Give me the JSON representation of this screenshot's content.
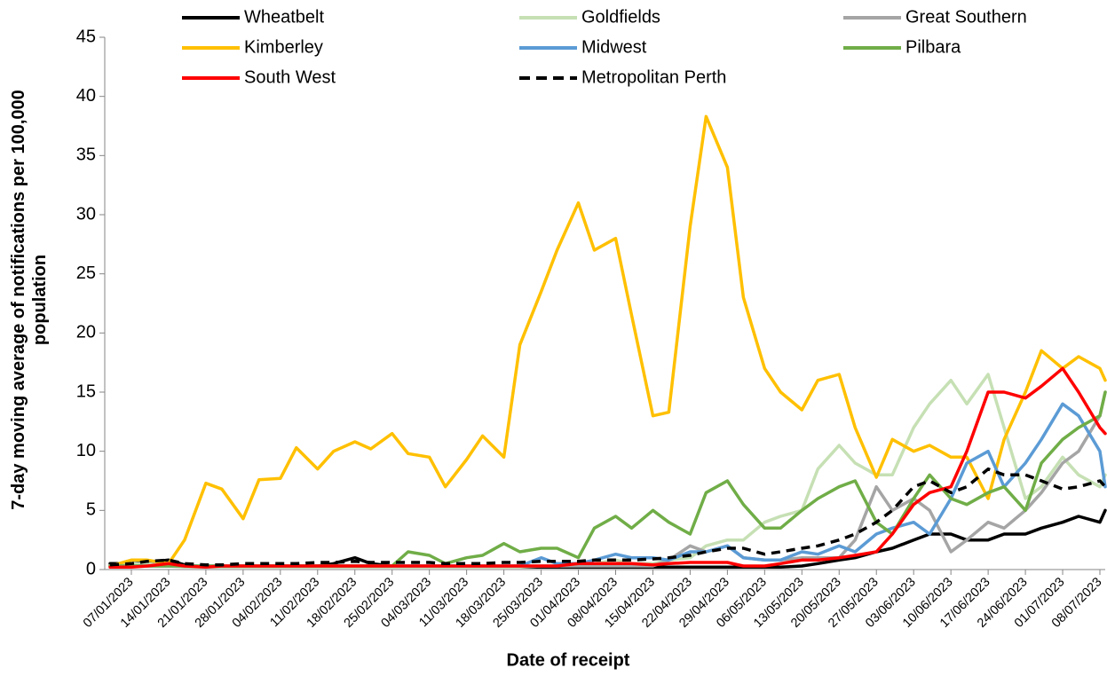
{
  "chart_data": {
    "type": "line",
    "x_label": "Date of receipt",
    "y_label": "7-day moving average of notifications per 100,000 population",
    "x": [
      "03/01/2023",
      "07/01/2023",
      "10/01/2023",
      "14/01/2023",
      "17/01/2023",
      "21/01/2023",
      "24/01/2023",
      "28/01/2023",
      "31/01/2023",
      "04/02/2023",
      "07/02/2023",
      "11/02/2023",
      "14/02/2023",
      "18/02/2023",
      "21/02/2023",
      "25/02/2023",
      "28/02/2023",
      "04/03/2023",
      "07/03/2023",
      "11/03/2023",
      "14/03/2023",
      "18/03/2023",
      "21/03/2023",
      "25/03/2023",
      "28/03/2023",
      "01/04/2023",
      "04/04/2023",
      "08/04/2023",
      "11/04/2023",
      "15/04/2023",
      "18/04/2023",
      "22/04/2023",
      "25/04/2023",
      "29/04/2023",
      "02/05/2023",
      "06/05/2023",
      "09/05/2023",
      "13/05/2023",
      "16/05/2023",
      "20/05/2023",
      "23/05/2023",
      "27/05/2023",
      "30/05/2023",
      "03/06/2023",
      "06/06/2023",
      "10/06/2023",
      "13/06/2023",
      "17/06/2023",
      "20/06/2023",
      "24/06/2023",
      "27/06/2023",
      "01/07/2023",
      "04/07/2023",
      "08/07/2023",
      "09/07/2023"
    ],
    "xlim": [
      "02/01/2023",
      "09/07/2023"
    ],
    "xticks": [
      "07/01/2023",
      "14/01/2023",
      "21/01/2023",
      "28/01/2023",
      "04/02/2023",
      "11/02/2023",
      "18/02/2023",
      "25/02/2023",
      "04/03/2023",
      "11/03/2023",
      "18/03/2023",
      "25/03/2023",
      "01/04/2023",
      "08/04/2023",
      "15/04/2023",
      "22/04/2023",
      "29/04/2023",
      "06/05/2023",
      "13/05/2023",
      "20/05/2023",
      "27/05/2023",
      "03/06/2023",
      "10/06/2023",
      "17/06/2023",
      "24/06/2023",
      "01/07/2023",
      "08/07/2023"
    ],
    "ylim": [
      0,
      45
    ],
    "yticks": [
      0,
      5,
      10,
      15,
      20,
      25,
      30,
      35,
      40,
      45
    ],
    "grid": false,
    "legend": "top",
    "series": [
      {
        "name": "Wheatbelt",
        "color": "#000000",
        "dashed": false,
        "values": [
          0.5,
          0.5,
          0.6,
          0.8,
          0.4,
          0.2,
          0.2,
          0.2,
          0.2,
          0.2,
          0.2,
          0.3,
          0.5,
          1,
          0.5,
          0.3,
          0.2,
          0.2,
          0.2,
          0.2,
          0.2,
          0.2,
          0.2,
          0.2,
          0.2,
          0.2,
          0.2,
          0.2,
          0.2,
          0.2,
          0.2,
          0.2,
          0.2,
          0.2,
          0.2,
          0.2,
          0.2,
          0.3,
          0.5,
          0.8,
          1,
          1.5,
          1.8,
          2.5,
          3,
          3,
          2.5,
          2.5,
          3,
          3,
          3.5,
          4,
          4.5,
          4,
          5
        ]
      },
      {
        "name": "Goldfields",
        "color": "#c6e0b4",
        "dashed": false,
        "values": [
          0.3,
          0.5,
          0.5,
          0.3,
          0.2,
          0.2,
          0.2,
          0.2,
          0.2,
          0.2,
          0.2,
          0.2,
          0.2,
          0.2,
          0.2,
          0.2,
          0.2,
          0.2,
          0.2,
          0.2,
          0.2,
          0.2,
          0.2,
          0.3,
          0.3,
          0.5,
          0.5,
          0.8,
          0.5,
          0.5,
          0.8,
          1,
          2,
          2.5,
          2.5,
          4,
          4.5,
          5,
          8.5,
          10.5,
          9,
          8,
          8,
          12,
          14,
          16,
          14,
          16.5,
          12,
          6,
          7,
          9.5,
          8,
          7,
          8
        ]
      },
      {
        "name": "Great Southern",
        "color": "#a5a5a5",
        "dashed": false,
        "values": [
          0.3,
          0.3,
          0.3,
          0.3,
          0.3,
          0.3,
          0.3,
          0.3,
          0.3,
          0.3,
          0.3,
          0.3,
          0.3,
          0.3,
          0.3,
          0.3,
          0.3,
          0.3,
          0.3,
          0.3,
          0.3,
          0.3,
          0.3,
          0.3,
          0.3,
          0.3,
          0.3,
          0.3,
          0.3,
          0.3,
          0.8,
          2,
          1.5,
          2,
          1,
          0.8,
          0.8,
          1,
          1,
          1,
          2.5,
          7,
          5,
          6,
          5,
          1.5,
          2.5,
          4,
          3.5,
          5,
          6.5,
          9,
          10,
          13,
          15
        ]
      },
      {
        "name": "Kimberley",
        "color": "#ffc000",
        "dashed": false,
        "values": [
          0.3,
          0.8,
          0.8,
          0.5,
          2.5,
          7.3,
          6.8,
          4.3,
          7.6,
          7.7,
          10.3,
          8.5,
          10,
          10.8,
          10.2,
          11.5,
          9.8,
          9.5,
          7,
          9.3,
          11.3,
          9.5,
          19,
          23.5,
          27,
          31,
          27,
          28,
          21.5,
          13,
          13.3,
          29,
          38.3,
          34,
          23,
          17,
          15,
          13.5,
          16,
          16.5,
          12,
          7.8,
          11,
          10,
          10.5,
          9.5,
          9.5,
          6,
          11,
          15,
          18.5,
          17,
          18,
          17,
          16
        ]
      },
      {
        "name": "Midwest",
        "color": "#5b9bd5",
        "dashed": false,
        "values": [
          0.3,
          0.3,
          0.3,
          0.3,
          0.3,
          0.3,
          0.3,
          0.3,
          0.3,
          0.3,
          0.3,
          0.3,
          0.3,
          0.3,
          0.3,
          0.3,
          0.3,
          0.3,
          0.3,
          0.3,
          0.3,
          0.3,
          0.3,
          1,
          0.5,
          0.5,
          0.8,
          1.3,
          1,
          1,
          0.8,
          1.5,
          1.5,
          2,
          1,
          0.8,
          0.8,
          1.5,
          1.3,
          2,
          1.5,
          3,
          3.5,
          4,
          3,
          6,
          9,
          10,
          7,
          9,
          11,
          14,
          13,
          10,
          7
        ]
      },
      {
        "name": "Pilbara",
        "color": "#70ad47",
        "dashed": false,
        "values": [
          0.3,
          0.3,
          0.3,
          0.3,
          0.3,
          0.3,
          0.3,
          0.3,
          0.3,
          0.3,
          0.3,
          0.3,
          0.3,
          0.3,
          0.3,
          0.3,
          1.5,
          1.2,
          0.5,
          1,
          1.2,
          2.2,
          1.5,
          1.8,
          1.8,
          1,
          3.5,
          4.5,
          3.5,
          5,
          4,
          3,
          6.5,
          7.5,
          5.5,
          3.5,
          3.5,
          5,
          6,
          7,
          7.5,
          4,
          3,
          6,
          8,
          6,
          5.5,
          6.5,
          7,
          5,
          9,
          11,
          12,
          13,
          15
        ]
      },
      {
        "name": "South West",
        "color": "#ff0000",
        "dashed": false,
        "values": [
          0.2,
          0.2,
          0.3,
          0.5,
          0.3,
          0.2,
          0.3,
          0.3,
          0.3,
          0.3,
          0.3,
          0.3,
          0.3,
          0.3,
          0.3,
          0.3,
          0.3,
          0.3,
          0.3,
          0.3,
          0.3,
          0.3,
          0.3,
          0.3,
          0.3,
          0.5,
          0.5,
          0.5,
          0.5,
          0.4,
          0.5,
          0.6,
          0.6,
          0.6,
          0.3,
          0.3,
          0.5,
          0.8,
          0.8,
          1,
          1.2,
          1.5,
          3,
          5.5,
          6.5,
          7,
          10,
          15,
          15,
          14.5,
          15.5,
          17,
          15,
          12,
          11.5
        ]
      },
      {
        "name": "Metropolitan Perth",
        "color": "#000000",
        "dashed": true,
        "values": [
          0.4,
          0.5,
          0.7,
          0.8,
          0.5,
          0.4,
          0.4,
          0.5,
          0.5,
          0.5,
          0.5,
          0.6,
          0.6,
          0.7,
          0.6,
          0.6,
          0.6,
          0.6,
          0.5,
          0.5,
          0.5,
          0.6,
          0.6,
          0.7,
          0.7,
          0.7,
          0.8,
          0.8,
          0.8,
          0.9,
          1,
          1.2,
          1.5,
          1.8,
          1.8,
          1.3,
          1.5,
          1.8,
          2,
          2.5,
          3,
          4,
          5,
          7,
          7.5,
          6.5,
          7,
          8.5,
          8,
          8,
          7.5,
          6.8,
          7,
          7.5,
          7
        ]
      }
    ]
  }
}
